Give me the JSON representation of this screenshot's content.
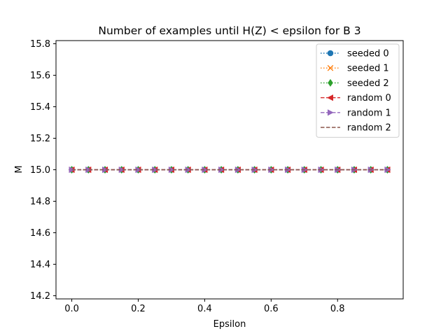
{
  "chart_data": {
    "type": "line",
    "title": "Number of examples until H(Z) < epsilon for B 3",
    "xlabel": "Epsilon",
    "ylabel": "M",
    "xlim": [
      -0.0475,
      0.9975
    ],
    "ylim": [
      14.18,
      15.82
    ],
    "xticks": [
      0.0,
      0.2,
      0.4,
      0.6,
      0.8
    ],
    "xtick_labels": [
      "0.0",
      "0.2",
      "0.4",
      "0.6",
      "0.8"
    ],
    "yticks": [
      14.2,
      14.4,
      14.6,
      14.8,
      15.0,
      15.2,
      15.4,
      15.6,
      15.8
    ],
    "ytick_labels": [
      "14.2",
      "14.4",
      "14.6",
      "14.8",
      "15.0",
      "15.2",
      "15.4",
      "15.6",
      "15.8"
    ],
    "grid": false,
    "legend_position": "top-right",
    "x": [
      0.0,
      0.05,
      0.1,
      0.15,
      0.2,
      0.25,
      0.3,
      0.35,
      0.4,
      0.45,
      0.5,
      0.55,
      0.6,
      0.65,
      0.7,
      0.75,
      0.8,
      0.85,
      0.9,
      0.95
    ],
    "series": [
      {
        "name": "seeded 0",
        "color": "#1f77b4",
        "linestyle": "dotted",
        "marker": "circle",
        "values": [
          15,
          15,
          15,
          15,
          15,
          15,
          15,
          15,
          15,
          15,
          15,
          15,
          15,
          15,
          15,
          15,
          15,
          15,
          15,
          15
        ]
      },
      {
        "name": "seeded 1",
        "color": "#ff7f0e",
        "linestyle": "dotted",
        "marker": "x",
        "values": [
          15,
          15,
          15,
          15,
          15,
          15,
          15,
          15,
          15,
          15,
          15,
          15,
          15,
          15,
          15,
          15,
          15,
          15,
          15,
          15
        ]
      },
      {
        "name": "seeded 2",
        "color": "#2ca02c",
        "linestyle": "dotted",
        "marker": "diamond",
        "values": [
          15,
          15,
          15,
          15,
          15,
          15,
          15,
          15,
          15,
          15,
          15,
          15,
          15,
          15,
          15,
          15,
          15,
          15,
          15,
          15
        ]
      },
      {
        "name": "random 0",
        "color": "#d62728",
        "linestyle": "dashed",
        "marker": "triangle-left",
        "values": [
          15,
          15,
          15,
          15,
          15,
          15,
          15,
          15,
          15,
          15,
          15,
          15,
          15,
          15,
          15,
          15,
          15,
          15,
          15,
          15
        ]
      },
      {
        "name": "random 1",
        "color": "#9467bd",
        "linestyle": "dashed",
        "marker": "triangle-right",
        "values": [
          15,
          15,
          15,
          15,
          15,
          15,
          15,
          15,
          15,
          15,
          15,
          15,
          15,
          15,
          15,
          15,
          15,
          15,
          15,
          15
        ]
      },
      {
        "name": "random 2",
        "color": "#8c564b",
        "linestyle": "dashed",
        "marker": "none",
        "values": [
          15,
          15,
          15,
          15,
          15,
          15,
          15,
          15,
          15,
          15,
          15,
          15,
          15,
          15,
          15,
          15,
          15,
          15,
          15,
          15
        ]
      }
    ]
  }
}
